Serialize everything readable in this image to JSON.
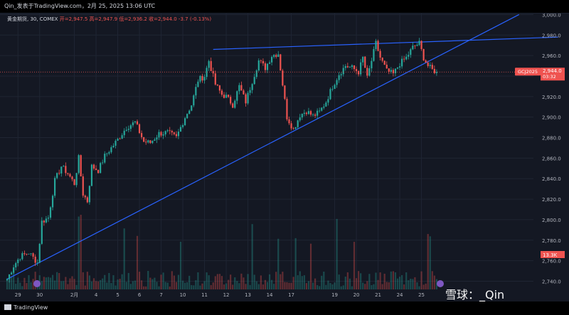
{
  "header": {
    "caption": "Qin_发表于TradingView.com，2月 25, 2025 13:06 UTC"
  },
  "legend": {
    "symbol": "黄金期货, 30, COMEX",
    "ohlc": "开=2,947.5  高=2,947.9  低=2,936.2  收=2,944.0  -3.7 (-0.13%)"
  },
  "price_label": {
    "symbol": "GCJ2025",
    "price": "2,944.0",
    "countdown": "03:32"
  },
  "volume_label": "13.3K",
  "branding": {
    "tradingview": "TradingView",
    "watermark": "雪球：_Qin"
  },
  "colors": {
    "up": "#26a69a",
    "down": "#ef5350",
    "trendline": "#2962ff",
    "background": "#141823",
    "price_line": "#ef5350"
  },
  "chart_data": {
    "type": "candlestick",
    "symbol": "GCJ2025",
    "interval": "30",
    "ylim": [
      2732,
      3001
    ],
    "y_ticks": [
      "3,000.0",
      "2,980.0",
      "2,960.0",
      "2,940.0",
      "2,920.0",
      "2,900.0",
      "2,880.0",
      "2,860.0",
      "2,840.0",
      "2,820.0",
      "2,800.0",
      "2,780.0",
      "2,760.0",
      "2,740.0"
    ],
    "y_tick_values": [
      3000,
      2980,
      2960,
      2940,
      2920,
      2900,
      2880,
      2860,
      2840,
      2820,
      2800,
      2780,
      2760,
      2740
    ],
    "x_ticks": [
      {
        "label": "29",
        "bar": 5
      },
      {
        "label": "30",
        "bar": 15
      },
      {
        "label": "2月",
        "bar": 31
      },
      {
        "label": "4",
        "bar": 41
      },
      {
        "label": "5",
        "bar": 51
      },
      {
        "label": "6",
        "bar": 61
      },
      {
        "label": "7",
        "bar": 71
      },
      {
        "label": "10",
        "bar": 81
      },
      {
        "label": "11",
        "bar": 91
      },
      {
        "label": "12",
        "bar": 101
      },
      {
        "label": "13",
        "bar": 111
      },
      {
        "label": "14",
        "bar": 121
      },
      {
        "label": "17",
        "bar": 131
      },
      {
        "label": "19",
        "bar": 151
      },
      {
        "label": "20",
        "bar": 161
      },
      {
        "label": "21",
        "bar": 171
      },
      {
        "label": "24",
        "bar": 181
      },
      {
        "label": "25",
        "bar": 191
      }
    ],
    "last_price": 2944.0,
    "path_waypoints": [
      [
        0,
        2742
      ],
      [
        3,
        2755
      ],
      [
        6,
        2764
      ],
      [
        10,
        2768
      ],
      [
        14,
        2758
      ],
      [
        16,
        2798
      ],
      [
        19,
        2802
      ],
      [
        22,
        2838
      ],
      [
        25,
        2852
      ],
      [
        28,
        2845
      ],
      [
        31,
        2835
      ],
      [
        33,
        2860
      ],
      [
        35,
        2825
      ],
      [
        37,
        2818
      ],
      [
        39,
        2852
      ],
      [
        42,
        2848
      ],
      [
        45,
        2862
      ],
      [
        48,
        2870
      ],
      [
        51,
        2878
      ],
      [
        55,
        2890
      ],
      [
        59,
        2895
      ],
      [
        63,
        2876
      ],
      [
        66,
        2875
      ],
      [
        70,
        2884
      ],
      [
        74,
        2885
      ],
      [
        78,
        2880
      ],
      [
        82,
        2900
      ],
      [
        85,
        2912
      ],
      [
        88,
        2936
      ],
      [
        91,
        2940
      ],
      [
        93,
        2955
      ],
      [
        96,
        2932
      ],
      [
        99,
        2922
      ],
      [
        101,
        2920
      ],
      [
        104,
        2912
      ],
      [
        107,
        2930
      ],
      [
        110,
        2915
      ],
      [
        113,
        2935
      ],
      [
        116,
        2955
      ],
      [
        119,
        2948
      ],
      [
        122,
        2960
      ],
      [
        125,
        2962
      ],
      [
        127,
        2932
      ],
      [
        129,
        2900
      ],
      [
        132,
        2888
      ],
      [
        135,
        2902
      ],
      [
        138,
        2906
      ],
      [
        141,
        2901
      ],
      [
        144,
        2905
      ],
      [
        147,
        2915
      ],
      [
        150,
        2930
      ],
      [
        153,
        2942
      ],
      [
        156,
        2950
      ],
      [
        159,
        2948
      ],
      [
        162,
        2944
      ],
      [
        164,
        2958
      ],
      [
        166,
        2938
      ],
      [
        168,
        2955
      ],
      [
        170,
        2972
      ],
      [
        172,
        2958
      ],
      [
        175,
        2945
      ],
      [
        178,
        2942
      ],
      [
        181,
        2952
      ],
      [
        184,
        2958
      ],
      [
        187,
        2968
      ],
      [
        190,
        2972
      ],
      [
        192,
        2958
      ],
      [
        194,
        2950
      ],
      [
        196,
        2946
      ],
      [
        198,
        2944
      ]
    ],
    "ohlc_summary": {
      "open": 2947.5,
      "high": 2947.9,
      "low": 2936.2,
      "close": 2944.0,
      "change": -3.7,
      "change_pct": -0.13
    },
    "trendlines": [
      {
        "from": {
          "bar": 0,
          "price": 2742
        },
        "to": {
          "bar": 236,
          "price": 3000
        }
      },
      {
        "from": {
          "bar": 95,
          "price": 2966
        },
        "to": {
          "bar": 254,
          "price": 2978
        }
      }
    ]
  }
}
